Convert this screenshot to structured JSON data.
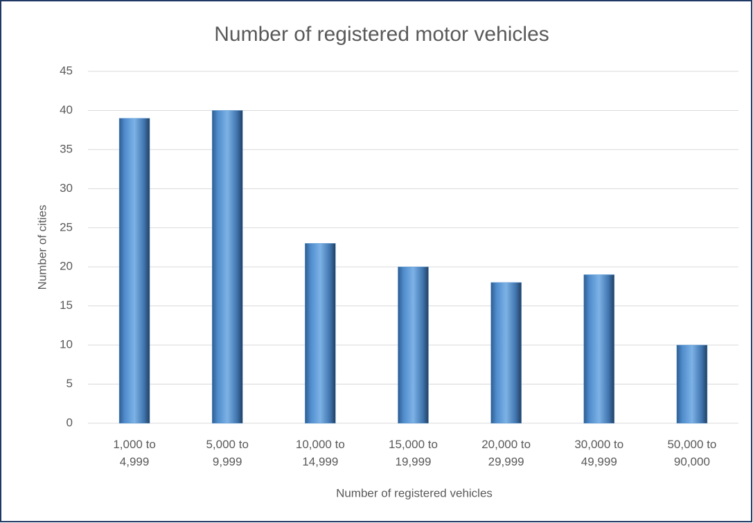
{
  "chart_data": {
    "type": "bar",
    "title": "Number of registered motor vehicles",
    "x_label": "Number of registered vehicles",
    "y_label": "Number of cities",
    "categories": [
      "1,000 to 4,999",
      "5,000 to 9,999",
      "10,000 to 14,999",
      "15,000 to 19,999",
      "20,000 to 29,999",
      "30,000 to 49,999",
      "50,000 to 90,000"
    ],
    "values": [
      39,
      40,
      23,
      20,
      18,
      19,
      10
    ],
    "color": "#5b9bd5",
    "ylim": [
      0,
      45
    ],
    "yticks": [
      0,
      5,
      10,
      15,
      20,
      25,
      30,
      35,
      40,
      45
    ],
    "grid": true
  }
}
